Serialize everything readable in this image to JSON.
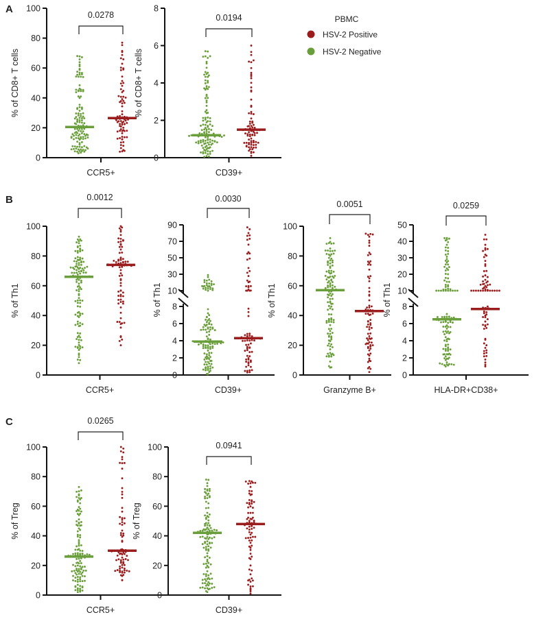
{
  "chart_data": [
    {
      "panel": "A",
      "type": "scatter",
      "subtype": "dot-plot-with-median",
      "ylabel": "% of CD8+ T cells",
      "xlabel": "CCR5+",
      "ylim": [
        0,
        100
      ],
      "yticks": [
        0,
        20,
        40,
        60,
        80,
        100
      ],
      "p_value": "0.0278",
      "groups": [
        {
          "series": "HSV-2 Negative",
          "median": 20.5,
          "min": 3,
          "max": 68,
          "n": 130
        },
        {
          "series": "HSV-2 Positive",
          "median": 26.5,
          "min": 4,
          "max": 77,
          "n": 85
        }
      ]
    },
    {
      "panel": "",
      "type": "scatter",
      "subtype": "dot-plot-with-median",
      "ylabel": "% of CD8+ T cells",
      "xlabel": "CD39+",
      "ylim": [
        0,
        8
      ],
      "yticks": [
        0,
        2,
        4,
        6,
        8
      ],
      "p_value": "0.0194",
      "groups": [
        {
          "series": "HSV-2 Negative",
          "median": 1.2,
          "min": 0.05,
          "max": 5.7,
          "n": 130
        },
        {
          "series": "HSV-2 Positive",
          "median": 1.5,
          "min": 0.1,
          "max": 6.0,
          "n": 85
        }
      ]
    },
    {
      "panel": "B",
      "type": "scatter",
      "subtype": "dot-plot-with-median",
      "ylabel": "% of Th1",
      "xlabel": "CCR5+",
      "ylim": [
        0,
        100
      ],
      "yticks": [
        0,
        20,
        40,
        60,
        80,
        100
      ],
      "p_value": "0.0012",
      "groups": [
        {
          "series": "HSV-2 Negative",
          "median": 66,
          "min": 8,
          "max": 93,
          "n": 130
        },
        {
          "series": "HSV-2 Positive",
          "median": 74,
          "min": 20,
          "max": 100,
          "n": 85
        }
      ]
    },
    {
      "panel": "",
      "type": "scatter",
      "subtype": "dot-plot-with-median",
      "ylabel": "% of Th1",
      "xlabel": "CD39+",
      "broken_axis": true,
      "ylim": [
        0,
        90
      ],
      "segments": [
        {
          "range": [
            0,
            8
          ],
          "yticks": [
            0,
            2,
            4,
            6,
            8
          ]
        },
        {
          "range": [
            10,
            90
          ],
          "yticks": [
            10,
            30,
            50,
            70,
            90
          ]
        }
      ],
      "p_value": "0.0030",
      "groups": [
        {
          "series": "HSV-2 Negative",
          "median": 3.9,
          "min": 0.1,
          "max": 29,
          "n": 130
        },
        {
          "series": "HSV-2 Positive",
          "median": 4.3,
          "min": 0.3,
          "max": 87,
          "n": 85
        }
      ]
    },
    {
      "panel": "",
      "type": "scatter",
      "subtype": "dot-plot-with-median",
      "ylabel": "% of Th1",
      "xlabel": "Granzyme B+",
      "ylim": [
        0,
        100
      ],
      "yticks": [
        0,
        20,
        40,
        60,
        80,
        100
      ],
      "p_value": "0.0051",
      "groups": [
        {
          "series": "HSV-2 Negative",
          "median": 57,
          "min": 5,
          "max": 92,
          "n": 130
        },
        {
          "series": "HSV-2 Positive",
          "median": 43,
          "min": 2,
          "max": 95,
          "n": 85
        }
      ]
    },
    {
      "panel": "",
      "type": "scatter",
      "subtype": "dot-plot-with-median",
      "ylabel": "% of Th1",
      "xlabel": "HLA-DR+CD38+",
      "broken_axis": true,
      "ylim": [
        0,
        50
      ],
      "segments": [
        {
          "range": [
            0,
            8
          ],
          "yticks": [
            0,
            2,
            4,
            6,
            8
          ]
        },
        {
          "range": [
            10,
            50
          ],
          "yticks": [
            10,
            20,
            30,
            40,
            50
          ]
        }
      ],
      "p_value": "0.0259",
      "groups": [
        {
          "series": "HSV-2 Negative",
          "median": 6.5,
          "min": 1,
          "max": 42,
          "n": 130
        },
        {
          "series": "HSV-2 Positive",
          "median": 7.7,
          "min": 1,
          "max": 44,
          "n": 85
        }
      ]
    },
    {
      "panel": "C",
      "type": "scatter",
      "subtype": "dot-plot-with-median",
      "ylabel": "% of Treg",
      "xlabel": "CCR5+",
      "ylim": [
        0,
        100
      ],
      "yticks": [
        0,
        20,
        40,
        60,
        80,
        100
      ],
      "p_value": "0.0265",
      "groups": [
        {
          "series": "HSV-2 Negative",
          "median": 26,
          "min": 2,
          "max": 73,
          "n": 130
        },
        {
          "series": "HSV-2 Positive",
          "median": 30,
          "min": 10,
          "max": 100,
          "n": 85
        }
      ]
    },
    {
      "panel": "",
      "type": "scatter",
      "subtype": "dot-plot-with-median",
      "ylabel": "% of Treg",
      "xlabel": "CD39+",
      "ylim": [
        0,
        100
      ],
      "yticks": [
        0,
        20,
        40,
        60,
        80,
        100
      ],
      "p_value": "0.0941",
      "groups": [
        {
          "series": "HSV-2 Negative",
          "median": 42,
          "min": 2,
          "max": 78,
          "n": 130
        },
        {
          "series": "HSV-2 Positive",
          "median": 48,
          "min": 1,
          "max": 77,
          "n": 85
        }
      ]
    }
  ],
  "legend": {
    "title": "PBMC",
    "placement": "top-right",
    "items": [
      {
        "label": "HSV-2 Positive",
        "color": "#9b1c1c"
      },
      {
        "label": "HSV-2 Negative",
        "color": "#6a9e3a"
      }
    ]
  },
  "colors": {
    "HSV-2 Negative": "#6a9e3a",
    "HSV-2 Positive": "#9b1c1c"
  }
}
